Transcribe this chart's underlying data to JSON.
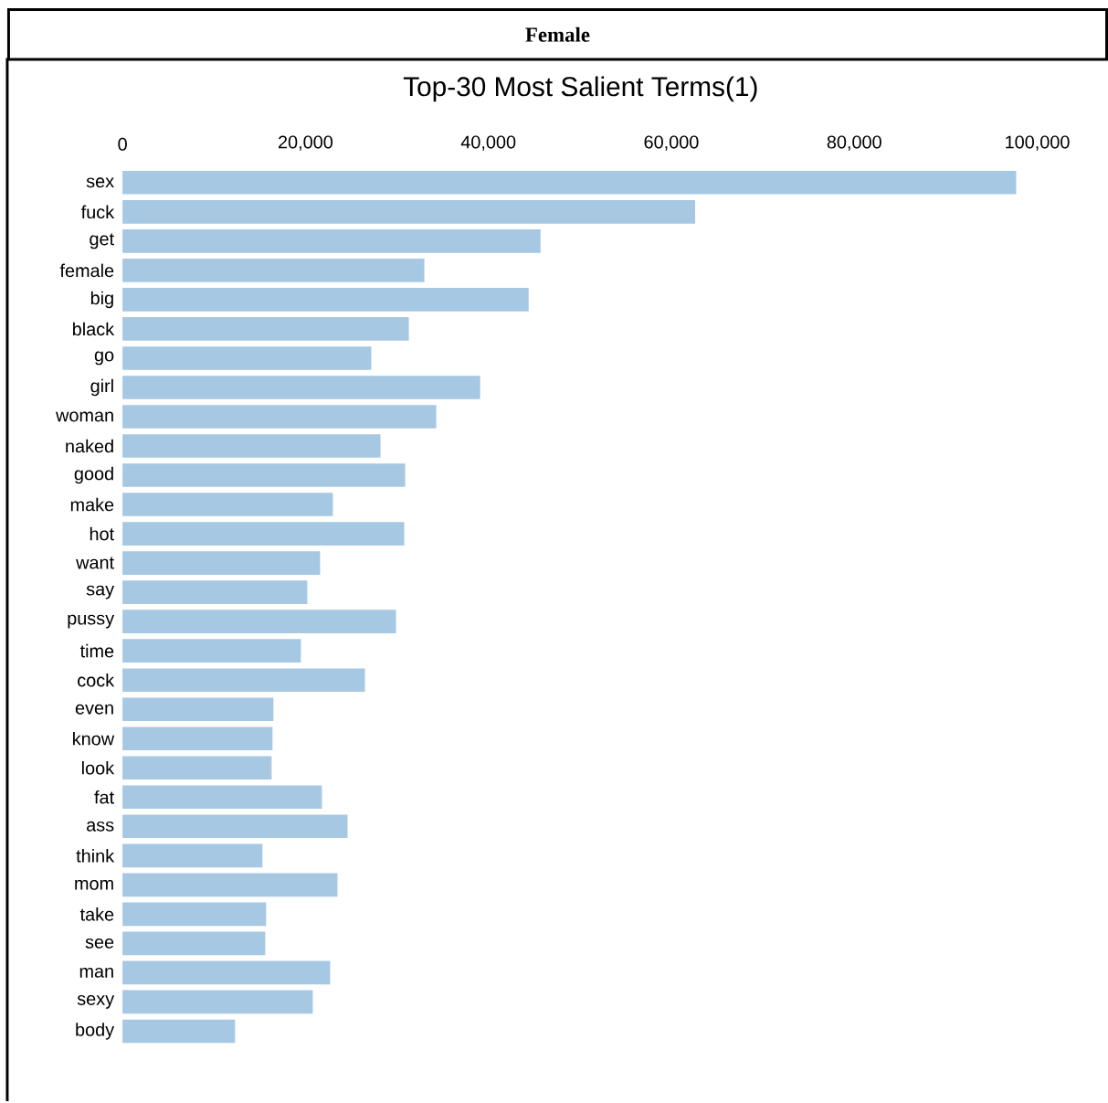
{
  "chart_data": {
    "type": "bar",
    "orientation": "horizontal",
    "title": "Female",
    "subtitle": "Top-30 Most Salient Terms(1)",
    "categories": [
      "sex",
      "fuck",
      "get",
      "female",
      "big",
      "black",
      "go",
      "girl",
      "woman",
      "naked",
      "good",
      "make",
      "hot",
      "want",
      "say",
      "pussy",
      "time",
      "cock",
      "even",
      "know",
      "look",
      "fat",
      "ass",
      "think",
      "mom",
      "take",
      "see",
      "man",
      "sexy",
      "body"
    ],
    "values": [
      97700,
      62600,
      45700,
      33000,
      44400,
      31300,
      27200,
      39100,
      34300,
      28200,
      30900,
      23000,
      30800,
      21600,
      20200,
      29900,
      19500,
      26500,
      16500,
      16400,
      16300,
      21800,
      24600,
      15300,
      23500,
      15700,
      15600,
      22700,
      20800,
      12300
    ],
    "color": "#a6c8e2",
    "xlim": [
      0,
      100000
    ],
    "xticks": [
      {
        "value": 0,
        "label": "0"
      },
      {
        "value": 20000,
        "label": "20,000"
      },
      {
        "value": 40000,
        "label": "40,000"
      },
      {
        "value": 60000,
        "label": "60,000"
      },
      {
        "value": 80000,
        "label": "80,000"
      },
      {
        "value": 100000,
        "label": "100,000"
      }
    ],
    "grid": false
  }
}
